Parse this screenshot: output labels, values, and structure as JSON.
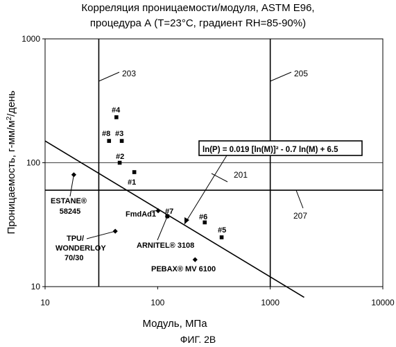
{
  "chart_data": {
    "type": "scatter",
    "title": "Корреляция проницаемости/модуля, ASTM E96,",
    "subtitle": "процедура А (T=23°C, градиент RH=85-90%)",
    "xlabel": "Модуль, МПа",
    "ylabel": "Проницаемость, г-мм/м²/день",
    "x_scale": "log",
    "y_scale": "log",
    "xlim": [
      10,
      10000
    ],
    "ylim": [
      10,
      1000
    ],
    "x_ticks": [
      "10",
      "100",
      "1000",
      "10000"
    ],
    "y_ticks": [
      "10",
      "100",
      "1000"
    ],
    "points": [
      {
        "label": "#1",
        "x": 62,
        "y": 84,
        "marker": "square"
      },
      {
        "label": "#2",
        "x": 46,
        "y": 100,
        "marker": "square"
      },
      {
        "label": "#3",
        "x": 48,
        "y": 150,
        "marker": "square"
      },
      {
        "label": "#4",
        "x": 43,
        "y": 233,
        "marker": "square"
      },
      {
        "label": "#5",
        "x": 370,
        "y": 25,
        "marker": "square"
      },
      {
        "label": "#6",
        "x": 262,
        "y": 33,
        "marker": "square"
      },
      {
        "label": "#7",
        "x": 122,
        "y": 37,
        "marker": "square"
      },
      {
        "label": "#8",
        "x": 37,
        "y": 150,
        "marker": "square"
      },
      {
        "label": "ESTANE® 58245",
        "x": 18,
        "y": 80,
        "marker": "diamond"
      },
      {
        "label": "TPU/ WONDERLOY 70/30",
        "x": 42,
        "y": 28,
        "marker": "diamond"
      },
      {
        "label": "FmdAd1",
        "x": 101,
        "y": 41,
        "marker": "diamond"
      },
      {
        "label": "ARNITEL® 3108",
        "x": 122,
        "y": 37,
        "marker": "diamond"
      },
      {
        "label": "PEBAX® MV 6100",
        "x": 215,
        "y": 16.5,
        "marker": "diamond"
      }
    ],
    "equation": "ln(P) = 0.019 [ln(M)]² - 0.7 ln(M) + 6.5",
    "regression_line": {
      "x": [
        10,
        2000
      ],
      "y": [
        150,
        8.2
      ]
    },
    "reference_lines": {
      "vertical": [
        {
          "label": "203",
          "x": 30
        },
        {
          "label": "205",
          "x": 1000
        }
      ],
      "horizontal": [
        {
          "label": "207",
          "y": 60
        }
      ],
      "gridline_y": 100
    },
    "line_labels": {
      "line_201": "201"
    }
  },
  "figure_caption": "ФИГ. 2В"
}
